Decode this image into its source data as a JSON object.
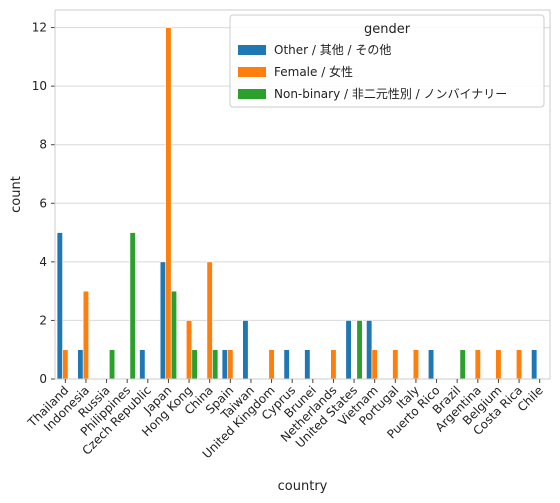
{
  "chart_data": {
    "type": "bar",
    "xlabel": "country",
    "ylabel": "count",
    "ylim": [
      0,
      12.6
    ],
    "yticks": [
      0,
      2,
      4,
      6,
      8,
      10,
      12
    ],
    "grid": "horizontal",
    "categories": [
      "Thailand",
      "Indonesia",
      "Russia",
      "Philippines",
      "Czech Republic",
      "Japan",
      "Hong Kong",
      "China",
      "Spain",
      "Taiwan",
      "United Kingdom",
      "Cyprus",
      "Brunei",
      "Netherlands",
      "United States",
      "Vietnam",
      "Portugal",
      "Italy",
      "Puerto Rico",
      "Brazil",
      "Argentina",
      "Belgium",
      "Costa Rica",
      "Chile"
    ],
    "legend": {
      "title": "gender",
      "placement": "top-right"
    },
    "series": [
      {
        "name": "Other / 其他 / その他",
        "color": "#1f77b4",
        "values": [
          5,
          1,
          0,
          0,
          1,
          4,
          0,
          0,
          1,
          2,
          0,
          1,
          1,
          0,
          2,
          2,
          0,
          0,
          1,
          0,
          0,
          0,
          0,
          1
        ]
      },
      {
        "name": "Female / 女性",
        "color": "#ff7f0e",
        "values": [
          1,
          3,
          0,
          0,
          0,
          12,
          2,
          4,
          1,
          0,
          1,
          0,
          0,
          1,
          0,
          1,
          1,
          1,
          0,
          0,
          1,
          1,
          1,
          0
        ]
      },
      {
        "name": "Non-binary / 非二元性別 / ノンバイナリー",
        "color": "#2ca02c",
        "values": [
          0,
          0,
          1,
          5,
          0,
          3,
          1,
          1,
          0,
          0,
          0,
          0,
          0,
          0,
          2,
          0,
          0,
          0,
          0,
          1,
          0,
          0,
          0,
          0
        ]
      }
    ]
  }
}
